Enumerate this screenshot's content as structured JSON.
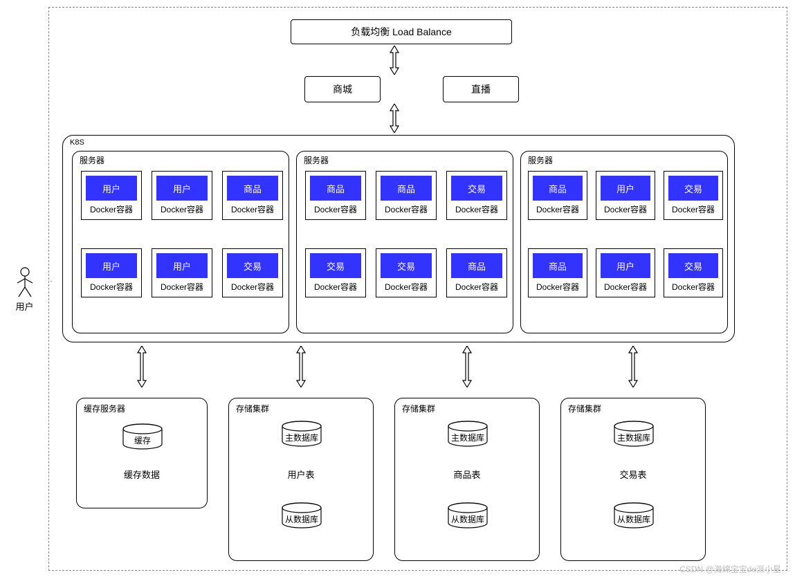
{
  "colors": {
    "blue": "#3333ff",
    "border": "#000000",
    "dash": "#888888",
    "watermark": "#bcbcbc",
    "bg": "#ffffff"
  },
  "actor": {
    "label": "用户"
  },
  "load_balance": {
    "label": "负载均衡 Load Balance"
  },
  "apps": {
    "mall": "商城",
    "live": "直播"
  },
  "k8s": {
    "label": "K8S",
    "server_label": "服务器",
    "docker_label": "Docker容器",
    "servers": [
      {
        "containers": [
          "用户",
          "用户",
          "商品",
          "用户",
          "用户",
          "交易"
        ]
      },
      {
        "containers": [
          "商品",
          "商品",
          "交易",
          "交易",
          "交易",
          "商品"
        ]
      },
      {
        "containers": [
          "商品",
          "用户",
          "交易",
          "商品",
          "用户",
          "交易"
        ]
      }
    ]
  },
  "storage": {
    "cache": {
      "title": "缓存服务器",
      "cyl": "缓存",
      "data": "缓存数据"
    },
    "cluster_label": "存储集群",
    "master": "主数据库",
    "slave": "从数据库",
    "clusters": [
      {
        "table": "用户表"
      },
      {
        "table": "商品表"
      },
      {
        "table": "交易表"
      }
    ]
  },
  "watermark": "CSDN @海绵宝宝de派小星"
}
